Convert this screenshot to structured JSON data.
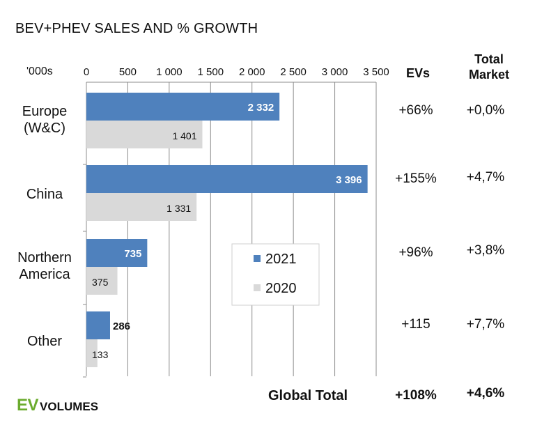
{
  "header": {
    "title": "BEV+PHEV SALES AND % GROWTH",
    "unit_label": "'000s",
    "col_evs": "EVs",
    "col_total_line1": "Total",
    "col_total_line2": "Market"
  },
  "growth_rows": [
    {
      "region": "Europe (W&C)",
      "evs": "+66%",
      "total": "+0,0%"
    },
    {
      "region": "China",
      "evs": "+155%",
      "total": "+4,7%"
    },
    {
      "region": "Northern America",
      "evs": "+96%",
      "total": "+3,8%"
    },
    {
      "region": "Other",
      "evs": "+115",
      "total": "+7,7%"
    }
  ],
  "global": {
    "label": "Global Total",
    "evs": "+108%",
    "total": "+4,6%"
  },
  "logo": {
    "ev": "EV",
    "volumes": "VOLUMES"
  },
  "colors": {
    "series_2021": "#4f81bd",
    "series_2020": "#d9d9d9",
    "logo_green": "#6bab2e"
  },
  "chart_data": {
    "type": "bar",
    "orientation": "horizontal",
    "title": "BEV+PHEV SALES AND % GROWTH",
    "categories": [
      [
        "Europe",
        "(W&C)"
      ],
      [
        "China"
      ],
      [
        "Northern",
        "America"
      ],
      [
        "Other"
      ]
    ],
    "series": [
      {
        "name": "2021",
        "values": [
          2332,
          3396,
          735,
          286
        ],
        "labels": [
          "2 332",
          "3 396",
          "735",
          "286"
        ]
      },
      {
        "name": "2020",
        "values": [
          1401,
          1331,
          375,
          133
        ],
        "labels": [
          "1 401",
          "1 331",
          "375",
          "133"
        ]
      }
    ],
    "xlim": [
      0,
      3500
    ],
    "ticks": [
      0,
      500,
      1000,
      1500,
      2000,
      2500,
      3000,
      3500
    ],
    "tick_labels": [
      "0",
      "500",
      "1 000",
      "1 500",
      "2 000",
      "2 500",
      "3 000",
      "3 500"
    ],
    "grid": true,
    "legend_position": "center"
  }
}
